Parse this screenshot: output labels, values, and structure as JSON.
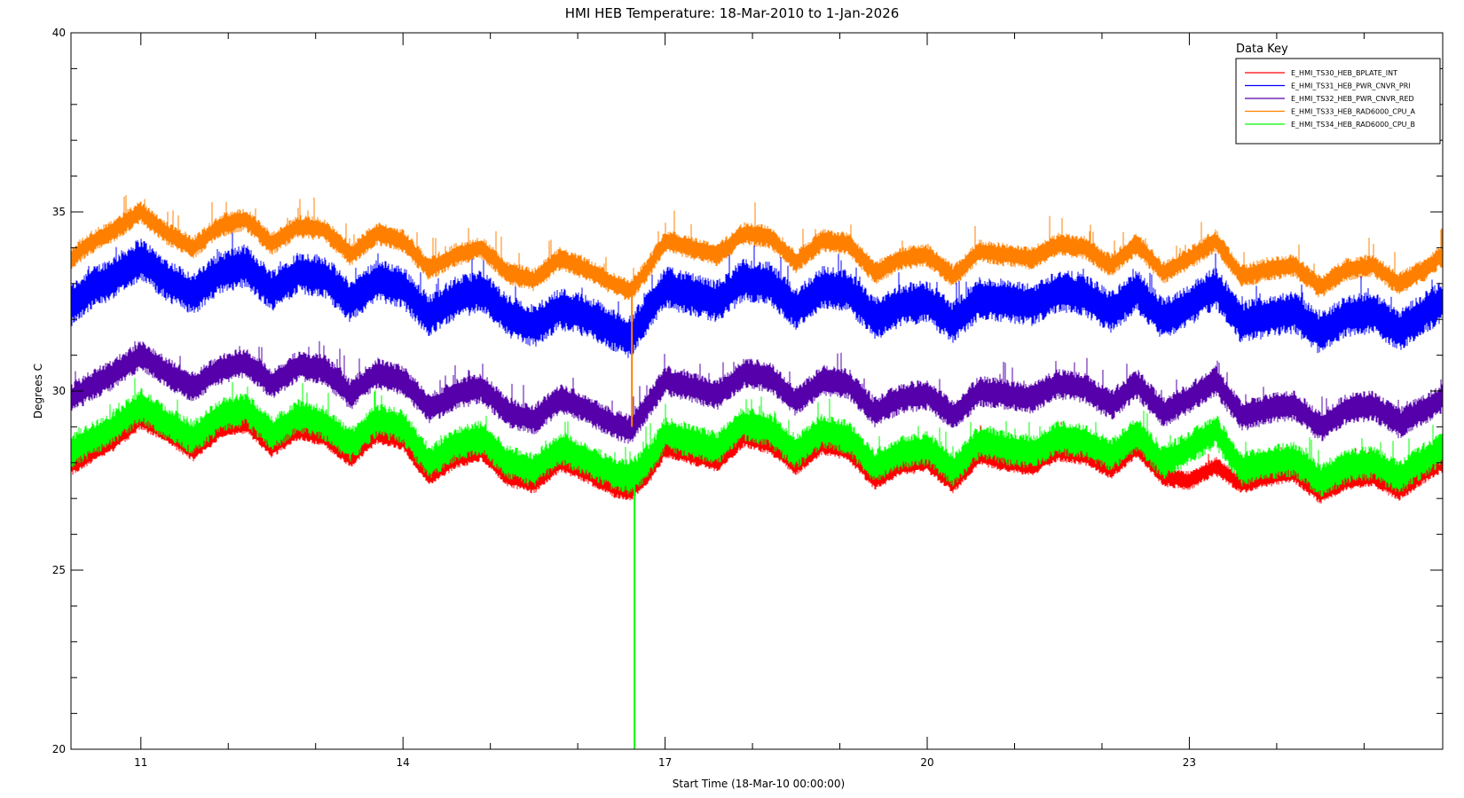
{
  "chart_data": {
    "type": "line",
    "title": "HMI HEB Temperature: 18-Mar-2010 to 1-Jan-2026",
    "xlabel": "Start Time (18-Mar-10 00:00:00)",
    "ylabel": "Degrees C",
    "xlim": [
      2010.2,
      2025.9
    ],
    "ylim": [
      20,
      40
    ],
    "x_tick_positions": [
      2011,
      2014,
      2017,
      2020,
      2023
    ],
    "x_tick_labels": [
      "11",
      "14",
      "17",
      "20",
      "23"
    ],
    "y_ticks": [
      20,
      25,
      30,
      35,
      40
    ],
    "legend": {
      "title": "Data Key",
      "position": "top-right",
      "entries": [
        "E_HMI_TS30_HEB_BPLATE_INT",
        "E_HMI_TS31_HEB_PWR_CNVR_PRI",
        "E_HMI_TS32_HEB_PWR_CNVR_RED",
        "E_HMI_TS33_HEB_RAD6000_CPU_A",
        "E_HMI_TS34_HEB_RAD6000_CPU_B"
      ]
    },
    "series": [
      {
        "name": "E_HMI_TS30_HEB_BPLATE_INT",
        "color": "#ff0000",
        "x": [
          2010.2,
          2010.4,
          2010.7,
          2011.0,
          2011.3,
          2011.6,
          2011.9,
          2012.2,
          2012.5,
          2012.8,
          2013.1,
          2013.4,
          2013.7,
          2014.0,
          2014.3,
          2014.6,
          2014.9,
          2015.2,
          2015.5,
          2015.8,
          2016.1,
          2016.4,
          2016.6,
          2016.8,
          2017.0,
          2017.3,
          2017.6,
          2017.9,
          2018.2,
          2018.5,
          2018.8,
          2019.1,
          2019.4,
          2019.7,
          2020.0,
          2020.3,
          2020.6,
          2020.9,
          2021.2,
          2021.5,
          2021.8,
          2022.1,
          2022.4,
          2022.7,
          2023.0,
          2023.3,
          2023.6,
          2023.9,
          2024.2,
          2024.5,
          2024.8,
          2025.1,
          2025.4,
          2025.7,
          2025.9
        ],
        "y": [
          27.9,
          28.2,
          28.6,
          29.2,
          28.8,
          28.3,
          28.9,
          29.1,
          28.4,
          28.9,
          28.7,
          28.1,
          28.8,
          28.6,
          27.6,
          28.1,
          28.3,
          27.6,
          27.4,
          28.0,
          27.7,
          27.3,
          27.2,
          27.6,
          28.4,
          28.2,
          28.0,
          28.7,
          28.5,
          27.9,
          28.5,
          28.3,
          27.5,
          27.9,
          28.0,
          27.4,
          28.2,
          28.0,
          27.9,
          28.3,
          28.2,
          27.8,
          28.4,
          27.6,
          27.5,
          27.9,
          27.4,
          27.6,
          27.7,
          27.1,
          27.5,
          27.6,
          27.2,
          27.7,
          28.0
        ]
      },
      {
        "name": "E_HMI_TS31_HEB_PWR_CNVR_PRI",
        "color": "#0000ff",
        "x": [
          2010.2,
          2010.4,
          2010.7,
          2011.0,
          2011.3,
          2011.6,
          2011.9,
          2012.2,
          2012.5,
          2012.8,
          2013.1,
          2013.4,
          2013.7,
          2014.0,
          2014.3,
          2014.6,
          2014.9,
          2015.2,
          2015.5,
          2015.8,
          2016.1,
          2016.4,
          2016.6,
          2016.8,
          2017.0,
          2017.3,
          2017.6,
          2017.9,
          2018.2,
          2018.5,
          2018.8,
          2019.1,
          2019.4,
          2019.7,
          2020.0,
          2020.3,
          2020.6,
          2020.9,
          2021.2,
          2021.5,
          2021.8,
          2022.1,
          2022.4,
          2022.7,
          2023.0,
          2023.3,
          2023.6,
          2023.9,
          2024.2,
          2024.5,
          2024.8,
          2025.1,
          2025.4,
          2025.7,
          2025.9
        ],
        "y": [
          32.4,
          32.8,
          33.2,
          33.7,
          33.1,
          32.7,
          33.3,
          33.5,
          32.8,
          33.3,
          33.2,
          32.5,
          33.1,
          32.9,
          32.1,
          32.6,
          32.8,
          32.1,
          31.8,
          32.3,
          32.1,
          31.7,
          31.5,
          32.2,
          32.9,
          32.7,
          32.5,
          33.1,
          33.0,
          32.3,
          32.9,
          32.8,
          32.0,
          32.4,
          32.5,
          31.9,
          32.6,
          32.5,
          32.4,
          32.8,
          32.7,
          32.2,
          32.8,
          32.0,
          32.4,
          32.9,
          31.9,
          32.1,
          32.2,
          31.6,
          32.1,
          32.2,
          31.7,
          32.2,
          32.5
        ]
      },
      {
        "name": "E_HMI_TS32_HEB_PWR_CNVR_RED",
        "color": "#5500aa",
        "x": [
          2010.2,
          2010.4,
          2010.7,
          2011.0,
          2011.3,
          2011.6,
          2011.9,
          2012.2,
          2012.5,
          2012.8,
          2013.1,
          2013.4,
          2013.7,
          2014.0,
          2014.3,
          2014.6,
          2014.9,
          2015.2,
          2015.5,
          2015.8,
          2016.1,
          2016.4,
          2016.6,
          2016.8,
          2017.0,
          2017.3,
          2017.6,
          2017.9,
          2018.2,
          2018.5,
          2018.8,
          2019.1,
          2019.4,
          2019.7,
          2020.0,
          2020.3,
          2020.6,
          2020.9,
          2021.2,
          2021.5,
          2021.8,
          2022.1,
          2022.4,
          2022.7,
          2023.0,
          2023.3,
          2023.6,
          2023.9,
          2024.2,
          2024.5,
          2024.8,
          2025.1,
          2025.4,
          2025.7,
          2025.9
        ],
        "y": [
          29.8,
          30.1,
          30.5,
          31.0,
          30.5,
          30.1,
          30.6,
          30.8,
          30.2,
          30.7,
          30.6,
          29.9,
          30.5,
          30.3,
          29.5,
          29.9,
          30.1,
          29.4,
          29.2,
          29.8,
          29.5,
          29.1,
          28.9,
          29.6,
          30.3,
          30.1,
          29.9,
          30.5,
          30.4,
          29.7,
          30.3,
          30.2,
          29.4,
          29.8,
          29.9,
          29.3,
          30.0,
          29.9,
          29.8,
          30.2,
          30.1,
          29.6,
          30.2,
          29.4,
          29.8,
          30.3,
          29.3,
          29.5,
          29.6,
          29.0,
          29.5,
          29.6,
          29.1,
          29.5,
          29.8
        ]
      },
      {
        "name": "E_HMI_TS33_HEB_RAD6000_CPU_A",
        "color": "#ff8000",
        "x": [
          2010.2,
          2010.4,
          2010.7,
          2011.0,
          2011.3,
          2011.6,
          2011.9,
          2012.2,
          2012.5,
          2012.8,
          2013.1,
          2013.4,
          2013.7,
          2014.0,
          2014.3,
          2014.6,
          2014.9,
          2015.2,
          2015.5,
          2015.8,
          2016.1,
          2016.4,
          2016.6,
          2016.8,
          2017.0,
          2017.3,
          2017.6,
          2017.9,
          2018.2,
          2018.5,
          2018.8,
          2019.1,
          2019.4,
          2019.7,
          2020.0,
          2020.3,
          2020.6,
          2020.9,
          2021.2,
          2021.5,
          2021.8,
          2022.1,
          2022.4,
          2022.7,
          2023.0,
          2023.3,
          2023.6,
          2023.9,
          2024.2,
          2024.5,
          2024.8,
          2025.1,
          2025.4,
          2025.7,
          2025.9
        ],
        "y": [
          33.7,
          34.1,
          34.5,
          35.0,
          34.4,
          34.0,
          34.6,
          34.8,
          34.1,
          34.6,
          34.5,
          33.8,
          34.4,
          34.2,
          33.4,
          33.8,
          34.0,
          33.3,
          33.1,
          33.7,
          33.4,
          33.0,
          32.8,
          33.4,
          34.2,
          34.0,
          33.8,
          34.4,
          34.3,
          33.6,
          34.2,
          34.1,
          33.3,
          33.7,
          33.8,
          33.2,
          33.9,
          33.8,
          33.7,
          34.1,
          34.0,
          33.5,
          34.1,
          33.3,
          33.7,
          34.2,
          33.2,
          33.4,
          33.5,
          32.9,
          33.4,
          33.5,
          33.0,
          33.4,
          33.8
        ]
      },
      {
        "name": "E_HMI_TS34_HEB_RAD6000_CPU_B",
        "color": "#00ff00",
        "x": [
          2010.2,
          2010.4,
          2010.7,
          2011.0,
          2011.3,
          2011.6,
          2011.9,
          2012.2,
          2012.5,
          2012.8,
          2013.1,
          2013.4,
          2013.7,
          2014.0,
          2014.3,
          2014.6,
          2014.9,
          2015.2,
          2015.5,
          2015.8,
          2016.1,
          2016.4,
          2016.6,
          2016.8,
          2017.0,
          2017.3,
          2017.6,
          2017.9,
          2018.2,
          2018.5,
          2018.8,
          2019.1,
          2019.4,
          2019.7,
          2020.0,
          2020.3,
          2020.6,
          2020.9,
          2021.2,
          2021.5,
          2021.8,
          2022.1,
          2022.4,
          2022.7,
          2023.0,
          2023.3,
          2023.6,
          2023.9,
          2024.2,
          2024.5,
          2024.8,
          2025.1,
          2025.4,
          2025.7,
          2025.9
        ],
        "y": [
          28.3,
          28.6,
          29.0,
          29.6,
          29.1,
          28.7,
          29.3,
          29.5,
          28.8,
          29.3,
          29.1,
          28.5,
          29.2,
          29.0,
          28.0,
          28.5,
          28.7,
          28.0,
          27.8,
          28.4,
          28.1,
          27.7,
          27.6,
          28.0,
          28.8,
          28.6,
          28.4,
          29.1,
          28.9,
          28.3,
          28.9,
          28.7,
          27.9,
          28.3,
          28.4,
          27.8,
          28.6,
          28.4,
          28.3,
          28.7,
          28.6,
          28.2,
          28.8,
          28.0,
          28.4,
          28.9,
          27.8,
          28.0,
          28.1,
          27.5,
          27.9,
          28.0,
          27.6,
          28.1,
          28.4
        ]
      }
    ],
    "annotations": [
      {
        "series": "E_HMI_TS34_HEB_RAD6000_CPU_B",
        "type": "dropout_spike",
        "x": 2016.65,
        "y_min": 20
      },
      {
        "series": "E_HMI_TS33_HEB_RAD6000_CPU_A",
        "type": "dropout_spike",
        "x": 2016.62,
        "y_min": 29
      }
    ]
  }
}
